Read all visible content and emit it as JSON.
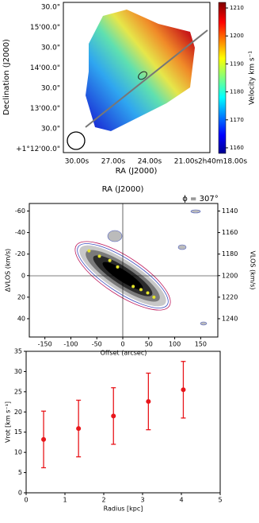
{
  "chart_data": [
    {
      "type": "image",
      "xlabel": "RA (J2000)",
      "ylabel": "Declination (J2000)",
      "xticklabels": [
        "30.00s",
        "27.00s",
        "24.00s",
        "21.00s",
        "2h40m18.00s"
      ],
      "yticklabels": [
        "30.0\"",
        "15'00.0\"",
        "30.0\"",
        "14'00.0\"",
        "30.0\"",
        "13'00.0\"",
        "30.0\"",
        "+1°12'00.0\""
      ],
      "colorbar": {
        "label": "Velocity km s⁻¹",
        "lim": [
          1158,
          1212
        ],
        "ticks": [
          1160,
          1170,
          1180,
          1190,
          1200,
          1210
        ]
      }
    },
    {
      "type": "pv",
      "title": "RA (J2000)",
      "annotation": "ϕ = 307°",
      "xlabel": "Offset (arcsec)",
      "ylabel": "ΔVLOS (km/s)",
      "y2label": "VLOS (km/s)",
      "xlim": [
        -180,
        183
      ],
      "xticks": [
        -150,
        -100,
        -50,
        0,
        50,
        100,
        150
      ],
      "ylim": [
        -67,
        57
      ],
      "yinvert": true,
      "yticks": [
        -60,
        -40,
        -20,
        0,
        20,
        40
      ],
      "y2lim": [
        1133,
        1257
      ],
      "y2ticks": [
        1140,
        1160,
        1180,
        1200,
        1220,
        1240
      ],
      "series": [
        {
          "color": "#e6e62a",
          "x": [
            -65,
            -45,
            -25,
            -10,
            20,
            35,
            48,
            60
          ],
          "values": [
            -23,
            -18,
            -14,
            -8,
            10,
            13,
            16,
            20
          ]
        }
      ]
    },
    {
      "type": "errorbar",
      "xlabel": "Radius  [kpc]",
      "ylabel": "Vrot [km s⁻¹]",
      "xlim": [
        0,
        5
      ],
      "xticks": [
        0,
        1,
        2,
        3,
        4,
        5
      ],
      "ylim": [
        0,
        35
      ],
      "yticks": [
        0,
        5,
        10,
        15,
        20,
        25,
        30,
        35
      ],
      "color": "#e8161b",
      "x": [
        0.45,
        1.35,
        2.25,
        3.15,
        4.05
      ],
      "values": [
        13.2,
        15.9,
        19,
        22.6,
        25.5
      ],
      "errors": [
        7,
        7,
        7,
        7,
        7
      ]
    }
  ]
}
